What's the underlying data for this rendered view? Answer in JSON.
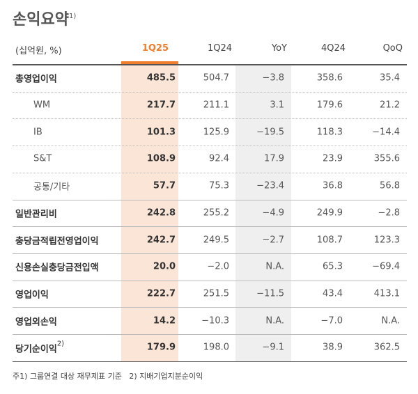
{
  "title": "손익요약",
  "title_note": "1)",
  "table": {
    "header": [
      "(십억원, %)",
      "1Q25",
      "1Q24",
      "YoY",
      "4Q24",
      "QoQ"
    ],
    "rows": [
      {
        "label": "총영업이익",
        "values": [
          "485.5",
          "504.7",
          "−3.8",
          "358.6",
          "35.4"
        ],
        "children": [
          {
            "label": "WM",
            "values": [
              "217.7",
              "211.1",
              "3.1",
              "179.6",
              "21.2"
            ]
          },
          {
            "label": "IB",
            "values": [
              "101.3",
              "125.9",
              "−19.5",
              "118.3",
              "−14.4"
            ]
          },
          {
            "label": "S&T",
            "values": [
              "108.9",
              "92.4",
              "17.9",
              "23.9",
              "355.6"
            ]
          },
          {
            "label": "공통/기타",
            "values": [
              "57.7",
              "75.3",
              "−23.4",
              "36.8",
              "56.8"
            ]
          }
        ]
      },
      {
        "label": "일반관리비",
        "values": [
          "242.8",
          "255.2",
          "−4.9",
          "249.9",
          "−2.8"
        ]
      },
      {
        "label": "충당금적립전영업이익",
        "values": [
          "242.7",
          "249.5",
          "−2.7",
          "108.7",
          "123.3"
        ]
      },
      {
        "label": "신용손실충당금전입액",
        "values": [
          "20.0",
          "−2.0",
          "N.A.",
          "65.3",
          "−69.4"
        ]
      },
      {
        "label": "영업이익",
        "values": [
          "222.7",
          "251.5",
          "−11.5",
          "43.4",
          "413.1"
        ]
      },
      {
        "label": "영업외손익",
        "values": [
          "14.2",
          "−10.3",
          "N.A.",
          "−7.0",
          "N.A."
        ]
      },
      {
        "label": "당기순이익",
        "label_note": "2)",
        "values": [
          "179.9",
          "198.0",
          "−9.1",
          "38.9",
          "362.5"
        ]
      }
    ]
  },
  "footnote": "주1) 그룹연결 대상 재무제표 기준   2) 지배기업지분순이익"
}
